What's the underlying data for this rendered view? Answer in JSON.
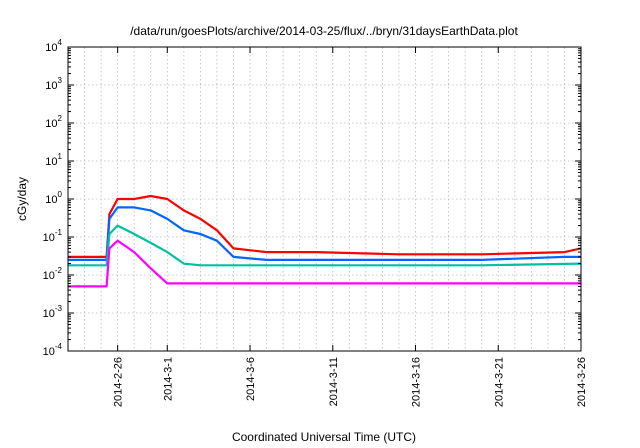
{
  "chart_data": {
    "type": "line",
    "title": "/data/run/goesPlots/archive/2014-03-25/flux/../bryn/31daysEarthData.plot",
    "xlabel": "Coordinated Universal Time (UTC)",
    "ylabel": "cGy/day",
    "yscale": "log",
    "ylim": [
      0.0001,
      10000
    ],
    "xlim": [
      "2014-02-23",
      "2014-03-26"
    ],
    "grid": true,
    "y_ticks": [
      {
        "value": 0.0001,
        "base": "10",
        "exp": "-4"
      },
      {
        "value": 0.001,
        "base": "10",
        "exp": "-3"
      },
      {
        "value": 0.01,
        "base": "10",
        "exp": "-2"
      },
      {
        "value": 0.1,
        "base": "10",
        "exp": "-1"
      },
      {
        "value": 1,
        "base": "10",
        "exp": "0"
      },
      {
        "value": 10,
        "base": "10",
        "exp": "1"
      },
      {
        "value": 100,
        "base": "10",
        "exp": "2"
      },
      {
        "value": 1000,
        "base": "10",
        "exp": "3"
      },
      {
        "value": 10000,
        "base": "10",
        "exp": "4"
      }
    ],
    "x_ticks": [
      {
        "date": "2014-02-26",
        "label": "2014-2-26"
      },
      {
        "date": "2014-03-01",
        "label": "2014-3-1"
      },
      {
        "date": "2014-03-06",
        "label": "2014-3-6"
      },
      {
        "date": "2014-03-11",
        "label": "2014-3-11"
      },
      {
        "date": "2014-03-16",
        "label": "2014-3-16"
      },
      {
        "date": "2014-03-21",
        "label": "2014-3-21"
      },
      {
        "date": "2014-03-26",
        "label": "2014-3-26"
      }
    ],
    "series": [
      {
        "color": "#ff0000",
        "x": [
          "2014-02-23",
          "2014-02-25T08:00",
          "2014-02-25T12:00",
          "2014-02-26",
          "2014-02-27",
          "2014-02-28",
          "2014-03-01",
          "2014-03-02",
          "2014-03-03",
          "2014-03-04",
          "2014-03-05",
          "2014-03-07",
          "2014-03-10",
          "2014-03-15",
          "2014-03-20",
          "2014-03-25",
          "2014-03-26"
        ],
        "y": [
          0.03,
          0.03,
          0.4,
          1.0,
          1.0,
          1.2,
          1.0,
          0.5,
          0.3,
          0.15,
          0.05,
          0.04,
          0.04,
          0.035,
          0.035,
          0.04,
          0.05
        ]
      },
      {
        "color": "#0066ff",
        "x": [
          "2014-02-23",
          "2014-02-25T08:00",
          "2014-02-25T12:00",
          "2014-02-26",
          "2014-02-27",
          "2014-02-28",
          "2014-03-01",
          "2014-03-02",
          "2014-03-03",
          "2014-03-04",
          "2014-03-05",
          "2014-03-07",
          "2014-03-10",
          "2014-03-15",
          "2014-03-20",
          "2014-03-25",
          "2014-03-26"
        ],
        "y": [
          0.025,
          0.025,
          0.3,
          0.6,
          0.6,
          0.5,
          0.3,
          0.15,
          0.12,
          0.08,
          0.03,
          0.025,
          0.025,
          0.025,
          0.025,
          0.03,
          0.03
        ]
      },
      {
        "color": "#00c0a0",
        "x": [
          "2014-02-23",
          "2014-02-25T08:00",
          "2014-02-25T12:00",
          "2014-02-26",
          "2014-02-27",
          "2014-02-28",
          "2014-03-01",
          "2014-03-02",
          "2014-03-03",
          "2014-03-05",
          "2014-03-10",
          "2014-03-20",
          "2014-03-26"
        ],
        "y": [
          0.018,
          0.018,
          0.12,
          0.2,
          0.12,
          0.07,
          0.04,
          0.02,
          0.018,
          0.018,
          0.018,
          0.018,
          0.02
        ]
      },
      {
        "color": "#ff00ff",
        "x": [
          "2014-02-23",
          "2014-02-25T08:00",
          "2014-02-25T12:00",
          "2014-02-26",
          "2014-02-27",
          "2014-02-28",
          "2014-03-01",
          "2014-03-02",
          "2014-03-05",
          "2014-03-10",
          "2014-03-20",
          "2014-03-26"
        ],
        "y": [
          0.005,
          0.005,
          0.05,
          0.08,
          0.04,
          0.015,
          0.006,
          0.006,
          0.006,
          0.006,
          0.006,
          0.006
        ]
      }
    ]
  }
}
